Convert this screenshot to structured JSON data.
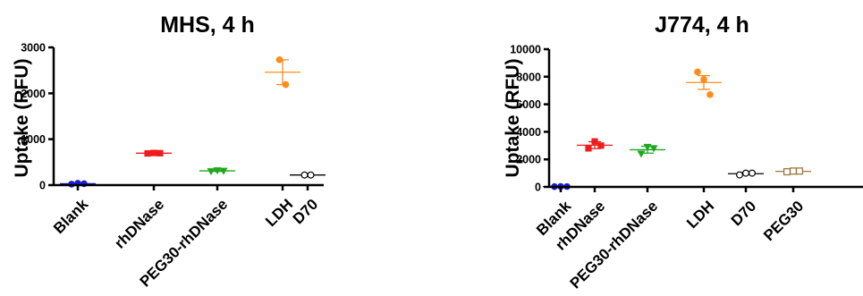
{
  "chart_data": [
    {
      "type": "scatter",
      "title": "MHS, 4 h",
      "ylabel": "Uptake  (RFU)",
      "xlabel": "",
      "ylim": [
        0,
        3000
      ],
      "yticks": [
        0,
        1000,
        2000,
        3000
      ],
      "ytick_labels": [
        "0",
        "1000",
        "2000",
        "3000"
      ],
      "grid": false,
      "categories": [
        "Blank",
        "rhDNase",
        "PEG30-rhDNase",
        "LDH",
        "D70"
      ],
      "series": [
        {
          "color": "#1a1ad6",
          "marker": "circle-filled",
          "values": [
            20,
            40,
            30
          ],
          "mean": 30,
          "error": 10
        },
        {
          "color": "#ee1c1c",
          "marker": "square-filled",
          "values": [
            690,
            700,
            695
          ],
          "mean": 695,
          "error": 8
        },
        {
          "color": "#1ea81e",
          "marker": "triangle-filled",
          "values": [
            300,
            320,
            310
          ],
          "mean": 310,
          "error": 12
        },
        {
          "color": "#ff8c1a",
          "marker": "circle-filled",
          "values": [
            2730,
            2190
          ],
          "mean": 2460,
          "error": 270
        },
        {
          "color": "#000000",
          "marker": "circle-open",
          "values": [
            220,
            220
          ],
          "mean": 220,
          "error": 5
        }
      ]
    },
    {
      "type": "scatter",
      "title": "J774, 4 h",
      "ylabel": "Uptake  (RFU)",
      "xlabel": "",
      "ylim": [
        0,
        10000
      ],
      "yticks": [
        0,
        2000,
        4000,
        6000,
        8000,
        10000
      ],
      "ytick_labels": [
        "0",
        "2000",
        "4000",
        "6000",
        "8000",
        "10000"
      ],
      "grid": false,
      "categories": [
        "Blank",
        "rhDNase",
        "PEG30-rhDNase",
        "LDH",
        "D70",
        "PEG30"
      ],
      "series": [
        {
          "color": "#1a1ad6",
          "marker": "circle-filled",
          "values": [
            20,
            30,
            25
          ],
          "mean": 25,
          "error": 10
        },
        {
          "color": "#ee1c1c",
          "marker": "square-filled",
          "values": [
            2800,
            3300,
            3000
          ],
          "mean": 3030,
          "error": 250
        },
        {
          "color": "#1ea81e",
          "marker": "triangle-filled",
          "values": [
            2400,
            2900,
            2800
          ],
          "mean": 2700,
          "error": 250
        },
        {
          "color": "#ff8c1a",
          "marker": "circle-filled",
          "values": [
            8350,
            7800,
            6700
          ],
          "mean": 7580,
          "error": 500
        },
        {
          "color": "#000000",
          "marker": "circle-open",
          "values": [
            870,
            1000,
            1000
          ],
          "mean": 960,
          "error": 70
        },
        {
          "color": "#a0763a",
          "marker": "square-open",
          "values": [
            1100,
            1150,
            1150
          ],
          "mean": 1130,
          "error": 50
        }
      ]
    }
  ]
}
